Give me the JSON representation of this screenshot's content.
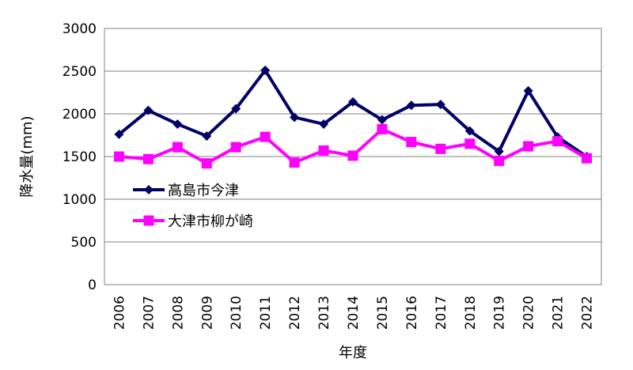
{
  "chart_data": {
    "type": "line",
    "title": "",
    "xlabel": "年度",
    "ylabel": "降水量(mm)",
    "ylim": [
      0,
      3000
    ],
    "yticks": [
      0,
      500,
      1000,
      1500,
      2000,
      2500,
      3000
    ],
    "grid": true,
    "legend_position": "left-middle",
    "categories": [
      "2006",
      "2007",
      "2008",
      "2009",
      "2010",
      "2011",
      "2012",
      "2013",
      "2014",
      "2015",
      "2016",
      "2017",
      "2018",
      "2019",
      "2020",
      "2021",
      "2022"
    ],
    "series": [
      {
        "name": "高島市今津",
        "color": "#000066",
        "marker": "diamond",
        "values": [
          1760,
          2040,
          1880,
          1740,
          2060,
          2510,
          1960,
          1880,
          2140,
          1930,
          2100,
          2110,
          1800,
          1560,
          2270,
          1730,
          1500
        ]
      },
      {
        "name": "大津市柳が崎",
        "color": "#ff00ff",
        "marker": "square",
        "values": [
          1500,
          1470,
          1610,
          1420,
          1610,
          1730,
          1430,
          1570,
          1510,
          1820,
          1670,
          1590,
          1650,
          1450,
          1620,
          1680,
          1480
        ]
      }
    ]
  }
}
